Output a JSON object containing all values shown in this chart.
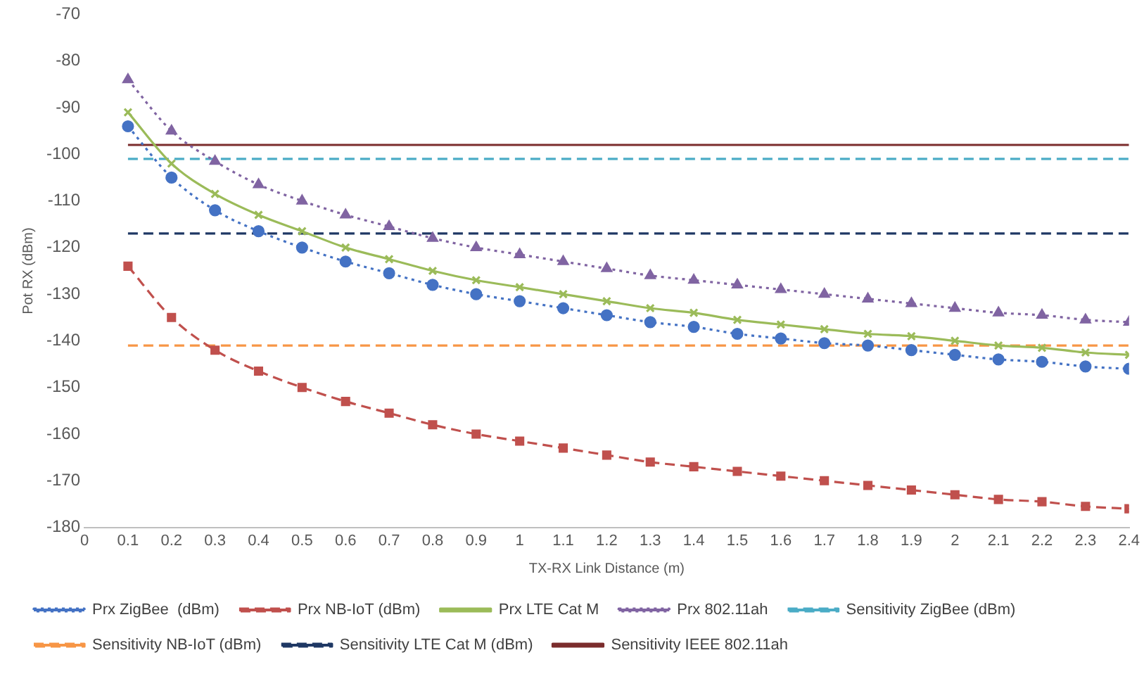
{
  "chart_data": {
    "type": "line",
    "xlabel": "TX-RX Link Distance (m)",
    "ylabel": "Pot RX (dBm)",
    "x": [
      0.1,
      0.2,
      0.3,
      0.4,
      0.5,
      0.6,
      0.7,
      0.8,
      0.9,
      1,
      1.1,
      1.2,
      1.3,
      1.4,
      1.5,
      1.6,
      1.7,
      1.8,
      1.9,
      2,
      2.1,
      2.2,
      2.3,
      2.4
    ],
    "xlim": [
      0,
      2.4
    ],
    "xticks": [
      0,
      0.1,
      0.2,
      0.3,
      0.4,
      0.5,
      0.6,
      0.7,
      0.8,
      0.9,
      1,
      1.1,
      1.2,
      1.3,
      1.4,
      1.5,
      1.6,
      1.7,
      1.8,
      1.9,
      2,
      2.1,
      2.2,
      2.3,
      2.4
    ],
    "ylim": [
      -180,
      -70
    ],
    "yticks": [
      -180,
      -170,
      -160,
      -150,
      -140,
      -130,
      -120,
      -110,
      -100,
      -90,
      -80,
      -70
    ],
    "grid": false,
    "legend": "bottom",
    "series": [
      {
        "name": "Prx ZigBee  (dBm)",
        "color": "#4472c4",
        "marker": "circle",
        "line_style": "dotted",
        "values": [
          -94,
          -105,
          -112,
          -116.5,
          -120,
          -123,
          -125.5,
          -128,
          -130,
          -131.5,
          -133,
          -134.5,
          -136,
          -137,
          -138.5,
          -139.5,
          -140.5,
          -141,
          -142,
          -143,
          -144,
          -144.5,
          -145.5,
          -146
        ]
      },
      {
        "name": "Prx NB-IoT (dBm)",
        "color": "#c0504d",
        "marker": "square",
        "line_style": "dashed",
        "values": [
          -124,
          -135,
          -142,
          -146.5,
          -150,
          -153,
          -155.5,
          -158,
          -160,
          -161.5,
          -163,
          -164.5,
          -166,
          -167,
          -168,
          -169,
          -170,
          -171,
          -172,
          -173,
          -174,
          -174.5,
          -175.5,
          -176
        ]
      },
      {
        "name": "Prx LTE Cat M",
        "color": "#9bbb59",
        "marker": "cross",
        "line_style": "solid",
        "values": [
          -91,
          -102,
          -108.5,
          -113,
          -116.5,
          -120,
          -122.5,
          -125,
          -127,
          -128.5,
          -130,
          -131.5,
          -133,
          -134,
          -135.5,
          -136.5,
          -137.5,
          -138.5,
          -139,
          -140,
          -141,
          -141.5,
          -142.5,
          -143
        ]
      },
      {
        "name": "Prx 802.11ah",
        "color": "#8064a2",
        "marker": "triangle",
        "line_style": "dotted",
        "values": [
          -84,
          -95,
          -101.5,
          -106.5,
          -110,
          -113,
          -115.5,
          -118,
          -120,
          -121.5,
          -123,
          -124.5,
          -126,
          -127,
          -128,
          -129,
          -130,
          -131,
          -132,
          -133,
          -134,
          -134.5,
          -135.5,
          -136
        ]
      },
      {
        "name": "Sensitivity ZigBee (dBm)",
        "color": "#4bacc6",
        "marker": "none",
        "line_style": "dashed",
        "values": [
          -101,
          -101,
          -101,
          -101,
          -101,
          -101,
          -101,
          -101,
          -101,
          -101,
          -101,
          -101,
          -101,
          -101,
          -101,
          -101,
          -101,
          -101,
          -101,
          -101,
          -101,
          -101,
          -101,
          -101
        ]
      },
      {
        "name": "Sensitivity NB-IoT (dBm)",
        "color": "#f79646",
        "marker": "none",
        "line_style": "dashed",
        "values": [
          -141,
          -141,
          -141,
          -141,
          -141,
          -141,
          -141,
          -141,
          -141,
          -141,
          -141,
          -141,
          -141,
          -141,
          -141,
          -141,
          -141,
          -141,
          -141,
          -141,
          -141,
          -141,
          -141,
          -141
        ]
      },
      {
        "name": "Sensitivity LTE Cat M (dBm)",
        "color": "#1f3864",
        "marker": "none",
        "line_style": "dashed",
        "values": [
          -117,
          -117,
          -117,
          -117,
          -117,
          -117,
          -117,
          -117,
          -117,
          -117,
          -117,
          -117,
          -117,
          -117,
          -117,
          -117,
          -117,
          -117,
          -117,
          -117,
          -117,
          -117,
          -117,
          -117
        ]
      },
      {
        "name": "Sensitivity IEEE 802.11ah",
        "color": "#7b2c2c",
        "marker": "none",
        "line_style": "solid",
        "values": [
          -98,
          -98,
          -98,
          -98,
          -98,
          -98,
          -98,
          -98,
          -98,
          -98,
          -98,
          -98,
          -98,
          -98,
          -98,
          -98,
          -98,
          -98,
          -98,
          -98,
          -98,
          -98,
          -98,
          -98
        ]
      }
    ]
  }
}
